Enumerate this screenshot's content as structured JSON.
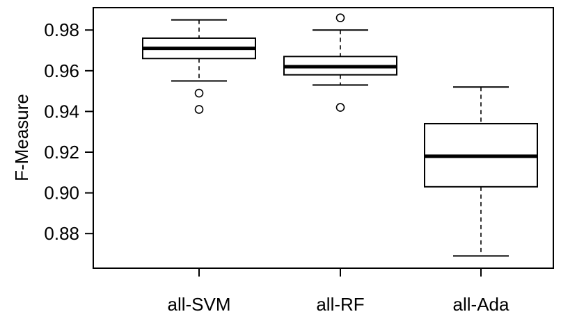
{
  "chart_data": {
    "type": "boxplot",
    "title": "",
    "xlabel": "",
    "ylabel": "F-Measure",
    "ylim": [
      0.863,
      0.991
    ],
    "yticks": [
      0.88,
      0.9,
      0.92,
      0.94,
      0.96,
      0.98
    ],
    "ytick_labels": [
      "0.88",
      "0.90",
      "0.92",
      "0.94",
      "0.96",
      "0.98"
    ],
    "categories": [
      "all-SVM",
      "all-RF",
      "all-Ada"
    ],
    "grid": false,
    "legend": "none",
    "colors": {
      "stroke": "#000000",
      "background": "#ffffff"
    },
    "boxes": [
      {
        "name": "all-SVM",
        "whisker_low": 0.955,
        "q1": 0.966,
        "median": 0.971,
        "q3": 0.976,
        "whisker_high": 0.985,
        "outliers": [
          0.949,
          0.941
        ]
      },
      {
        "name": "all-RF",
        "whisker_low": 0.953,
        "q1": 0.958,
        "median": 0.962,
        "q3": 0.967,
        "whisker_high": 0.98,
        "outliers": [
          0.986,
          0.942
        ]
      },
      {
        "name": "all-Ada",
        "whisker_low": 0.869,
        "q1": 0.903,
        "median": 0.918,
        "q3": 0.934,
        "whisker_high": 0.952,
        "outliers": []
      }
    ]
  }
}
